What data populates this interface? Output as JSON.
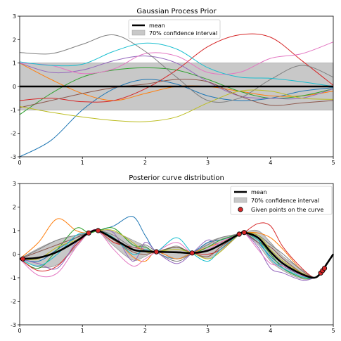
{
  "chart_data": [
    {
      "type": "line",
      "title": "Gaussian Process Prior",
      "xlabel": "",
      "ylabel": "",
      "xlim": [
        0,
        5
      ],
      "ylim": [
        -3,
        3
      ],
      "xticks": [
        "0",
        "1",
        "2",
        "3",
        "4",
        "5"
      ],
      "yticks": [
        "-3",
        "-2",
        "-1",
        "0",
        "1",
        "2",
        "3"
      ],
      "legend": {
        "placement": "top-center",
        "entries": [
          "mean",
          "70% confidence interval"
        ]
      },
      "mean": {
        "color": "#000000",
        "x": [
          0,
          5
        ],
        "y": [
          0,
          0
        ]
      },
      "band": {
        "color": "#c8c8c8",
        "x": [
          0,
          5
        ],
        "lower": [
          -1.0,
          -1.0
        ],
        "upper": [
          1.0,
          1.0
        ]
      },
      "series": [
        {
          "color": "#1f77b4",
          "x": [
            0,
            0.5,
            1,
            1.5,
            2,
            2.5,
            3,
            3.5,
            4,
            4.5,
            5
          ],
          "y": [
            -3.0,
            -2.3,
            -1.0,
            -0.1,
            0.3,
            0.1,
            -0.4,
            -0.6,
            -0.5,
            -0.2,
            -0.05
          ]
        },
        {
          "color": "#ff7f0e",
          "x": [
            0,
            0.5,
            1,
            1.5,
            2,
            2.5,
            3,
            3.5,
            4,
            4.5,
            5
          ],
          "y": [
            1.0,
            0.3,
            -0.3,
            -0.6,
            -0.3,
            0.0,
            0.0,
            -0.2,
            -0.4,
            -0.4,
            -0.2
          ]
        },
        {
          "color": "#2ca02c",
          "x": [
            0,
            0.5,
            1,
            1.5,
            2,
            2.5,
            3,
            3.5,
            4,
            4.5,
            5
          ],
          "y": [
            -1.2,
            -0.3,
            0.4,
            0.7,
            0.8,
            0.7,
            0.3,
            -0.2,
            -0.5,
            -0.4,
            -0.1
          ]
        },
        {
          "color": "#d62728",
          "x": [
            0,
            0.5,
            1,
            1.5,
            2,
            2.5,
            3,
            3.5,
            4,
            4.5,
            5
          ],
          "y": [
            -0.6,
            -0.5,
            -0.65,
            -0.6,
            -0.1,
            0.7,
            1.7,
            2.2,
            2.1,
            1.1,
            0.05
          ]
        },
        {
          "color": "#9467bd",
          "x": [
            0,
            0.5,
            1,
            1.5,
            2,
            2.5,
            3,
            3.5,
            4,
            4.5,
            5
          ],
          "y": [
            1.0,
            0.6,
            0.7,
            1.1,
            1.3,
            1.0,
            0.2,
            -0.4,
            -0.5,
            -0.5,
            -0.1
          ]
        },
        {
          "color": "#8c564b",
          "x": [
            0,
            0.5,
            1,
            1.5,
            2,
            2.5,
            3,
            3.5,
            4,
            4.5,
            5
          ],
          "y": [
            -0.9,
            -0.6,
            -0.3,
            -0.05,
            0.1,
            0.3,
            0.2,
            -0.4,
            -0.8,
            -0.7,
            -0.6
          ]
        },
        {
          "color": "#e377c2",
          "x": [
            0,
            0.5,
            1,
            1.5,
            2,
            2.5,
            3,
            3.5,
            4,
            4.5,
            5
          ],
          "y": [
            1.0,
            0.9,
            0.55,
            0.75,
            1.4,
            1.3,
            0.6,
            0.6,
            1.2,
            1.4,
            1.9
          ]
        },
        {
          "color": "#7f7f7f",
          "x": [
            0,
            0.5,
            1,
            1.5,
            2,
            2.5,
            3,
            3.5,
            4,
            4.5,
            5
          ],
          "y": [
            1.45,
            1.4,
            1.8,
            2.2,
            1.5,
            0.4,
            -0.6,
            -0.5,
            0.3,
            0.9,
            0.4
          ]
        },
        {
          "color": "#bcbd22",
          "x": [
            0,
            0.5,
            1,
            1.5,
            2,
            2.5,
            3,
            3.5,
            4,
            4.5,
            5
          ],
          "y": [
            -0.85,
            -1.1,
            -1.3,
            -1.45,
            -1.5,
            -1.3,
            -0.7,
            -0.2,
            -0.2,
            -0.5,
            -0.55
          ]
        },
        {
          "color": "#17becf",
          "x": [
            0,
            0.5,
            1,
            1.5,
            2,
            2.5,
            3,
            3.5,
            4,
            4.5,
            5
          ],
          "y": [
            1.05,
            0.9,
            0.95,
            1.5,
            1.85,
            1.6,
            0.8,
            0.4,
            0.35,
            0.2,
            0.0
          ]
        }
      ]
    },
    {
      "type": "line",
      "title": "Posterior curve distribution",
      "xlabel": "",
      "ylabel": "",
      "xlim": [
        0,
        5
      ],
      "ylim": [
        -3,
        3
      ],
      "xticks": [
        "0",
        "1",
        "2",
        "3",
        "4",
        "5"
      ],
      "yticks": [
        "-3",
        "-2",
        "-1",
        "0",
        "1",
        "2",
        "3"
      ],
      "legend": {
        "placement": "top-right",
        "entries": [
          "mean",
          "70% confidence interval",
          "Given points on the curve"
        ]
      },
      "mean": {
        "color": "#000000",
        "x": [
          0,
          0.3,
          0.6,
          0.9,
          1.1,
          1.25,
          1.5,
          1.8,
          2.0,
          2.18,
          2.5,
          2.75,
          3.0,
          3.2,
          3.5,
          3.58,
          3.8,
          4.0,
          4.2,
          4.5,
          4.7,
          4.8,
          4.85,
          5.0
        ],
        "y": [
          -0.2,
          -0.15,
          0.1,
          0.55,
          0.9,
          1.0,
          0.65,
          0.2,
          0.12,
          0.1,
          0.08,
          0.05,
          0.15,
          0.4,
          0.85,
          0.92,
          0.7,
          0.1,
          -0.4,
          -0.85,
          -1.0,
          -0.8,
          -0.6,
          0.0
        ]
      },
      "band": {
        "color": "#c8c8c8",
        "x": [
          0,
          0.3,
          0.6,
          0.9,
          1.1,
          1.25,
          1.5,
          1.8,
          2.0,
          2.18,
          2.5,
          2.75,
          3.0,
          3.2,
          3.5,
          3.58,
          3.8,
          4.0,
          4.2,
          4.5,
          4.7,
          4.8,
          4.85,
          5.0
        ],
        "lower": [
          -0.2,
          -0.55,
          -0.45,
          0.3,
          0.9,
          0.95,
          0.35,
          -0.25,
          -0.1,
          0.1,
          -0.2,
          0.05,
          -0.2,
          0.1,
          0.82,
          0.9,
          0.4,
          -0.3,
          -0.7,
          -1.05,
          -1.0,
          -0.85,
          -0.6,
          0.0
        ],
        "upper": [
          -0.2,
          0.25,
          0.6,
          0.8,
          0.9,
          1.05,
          0.95,
          0.6,
          0.35,
          0.1,
          0.35,
          0.05,
          0.5,
          0.7,
          0.88,
          0.94,
          1.0,
          0.5,
          -0.1,
          -0.65,
          -1.0,
          -0.75,
          -0.6,
          0.0
        ]
      },
      "points": {
        "color": "#d62728",
        "x": [
          0.05,
          1.1,
          1.25,
          2.18,
          2.75,
          3.5,
          3.58,
          4.8,
          4.83,
          4.86
        ],
        "y": [
          -0.2,
          0.9,
          1.0,
          0.1,
          0.05,
          0.85,
          0.92,
          -0.8,
          -0.7,
          -0.6
        ]
      },
      "series": [
        {
          "color": "#1f77b4",
          "x": [
            0,
            0.3,
            0.6,
            0.9,
            1.1,
            1.25,
            1.5,
            1.8,
            2.0,
            2.18,
            2.5,
            2.75,
            3.0,
            3.2,
            3.5,
            3.58,
            3.8,
            4.0,
            4.2,
            4.5,
            4.7,
            4.8,
            4.85,
            5.0
          ],
          "y": [
            -0.2,
            -0.3,
            0.2,
            0.7,
            0.9,
            1.0,
            1.2,
            1.6,
            0.8,
            0.1,
            -0.2,
            0.05,
            0.5,
            0.6,
            0.85,
            0.9,
            0.5,
            -0.1,
            -0.5,
            -0.9,
            -1.0,
            -0.85,
            -0.6,
            0.0
          ]
        },
        {
          "color": "#ff7f0e",
          "x": [
            0,
            0.3,
            0.6,
            0.9,
            1.1,
            1.25,
            1.5,
            1.8,
            2.0,
            2.18,
            2.5,
            2.75,
            3.0,
            3.2,
            3.5,
            3.58,
            3.8,
            4.0,
            4.2,
            4.5,
            4.7,
            4.8,
            4.85,
            5.0
          ],
          "y": [
            -0.2,
            0.5,
            1.5,
            1.0,
            0.9,
            1.0,
            0.7,
            -0.1,
            -0.3,
            0.1,
            -0.2,
            0.05,
            0.3,
            0.5,
            0.85,
            0.92,
            0.9,
            0.7,
            0.2,
            -0.7,
            -1.0,
            -0.8,
            -0.6,
            0.0
          ]
        },
        {
          "color": "#2ca02c",
          "x": [
            0,
            0.3,
            0.6,
            0.9,
            1.1,
            1.25,
            1.5,
            1.8,
            2.0,
            2.18,
            2.5,
            2.75,
            3.0,
            3.2,
            3.5,
            3.58,
            3.8,
            4.0,
            4.2,
            4.5,
            4.7,
            4.8,
            4.85,
            5.0
          ],
          "y": [
            -0.2,
            -0.6,
            0.2,
            1.1,
            0.9,
            1.0,
            1.1,
            0.4,
            0.3,
            0.1,
            0.3,
            0.05,
            0.3,
            0.6,
            0.85,
            0.92,
            0.6,
            0.0,
            -0.6,
            -1.0,
            -1.0,
            -0.8,
            -0.6,
            0.0
          ]
        },
        {
          "color": "#d62728",
          "x": [
            0,
            0.3,
            0.6,
            0.9,
            1.1,
            1.25,
            1.5,
            1.8,
            2.0,
            2.18,
            2.5,
            2.75,
            3.0,
            3.2,
            3.5,
            3.58,
            3.8,
            4.0,
            4.2,
            4.5,
            4.7,
            4.8,
            4.85,
            5.0
          ],
          "y": [
            -0.2,
            -0.7,
            -0.5,
            0.4,
            0.9,
            1.0,
            0.5,
            0.3,
            0.2,
            0.1,
            0.1,
            0.05,
            0.0,
            0.2,
            0.85,
            0.92,
            1.3,
            1.2,
            0.3,
            -0.6,
            -1.0,
            -0.8,
            -0.6,
            0.0
          ]
        },
        {
          "color": "#9467bd",
          "x": [
            0,
            0.3,
            0.6,
            0.9,
            1.1,
            1.25,
            1.5,
            1.8,
            2.0,
            2.18,
            2.5,
            2.75,
            3.0,
            3.2,
            3.5,
            3.58,
            3.8,
            4.0,
            4.2,
            4.5,
            4.7,
            4.8,
            4.85,
            5.0
          ],
          "y": [
            -0.2,
            -0.4,
            -0.6,
            0.5,
            0.9,
            1.0,
            0.9,
            -0.3,
            0.5,
            0.1,
            -0.4,
            0.05,
            0.6,
            0.4,
            0.85,
            0.92,
            0.3,
            -0.6,
            -0.8,
            -1.1,
            -1.0,
            -0.8,
            -0.6,
            0.0
          ]
        },
        {
          "color": "#8c564b",
          "x": [
            0,
            0.3,
            0.6,
            0.9,
            1.1,
            1.25,
            1.5,
            1.8,
            2.0,
            2.18,
            2.5,
            2.75,
            3.0,
            3.2,
            3.5,
            3.58,
            3.8,
            4.0,
            4.2,
            4.5,
            4.7,
            4.8,
            4.85,
            5.0
          ],
          "y": [
            -0.2,
            0.1,
            0.4,
            0.7,
            0.9,
            1.0,
            0.6,
            0.1,
            0.0,
            0.1,
            0.3,
            0.05,
            -0.1,
            0.3,
            0.85,
            0.92,
            0.5,
            0.3,
            -0.2,
            -0.8,
            -1.0,
            -0.8,
            -0.6,
            0.0
          ]
        },
        {
          "color": "#e377c2",
          "x": [
            0,
            0.3,
            0.6,
            0.9,
            1.1,
            1.25,
            1.5,
            1.8,
            2.0,
            2.18,
            2.5,
            2.75,
            3.0,
            3.2,
            3.5,
            3.58,
            3.8,
            4.0,
            4.2,
            4.5,
            4.7,
            4.8,
            4.85,
            5.0
          ],
          "y": [
            -0.2,
            -0.9,
            -0.8,
            0.3,
            0.9,
            1.0,
            0.2,
            -0.5,
            -0.2,
            0.1,
            0.5,
            0.05,
            0.2,
            0.5,
            0.85,
            0.92,
            0.2,
            -0.4,
            -0.5,
            -0.9,
            -1.0,
            -0.8,
            -0.6,
            0.0
          ]
        },
        {
          "color": "#7f7f7f",
          "x": [
            0,
            0.3,
            0.6,
            0.9,
            1.1,
            1.25,
            1.5,
            1.8,
            2.0,
            2.18,
            2.5,
            2.75,
            3.0,
            3.2,
            3.5,
            3.58,
            3.8,
            4.0,
            4.2,
            4.5,
            4.7,
            4.8,
            4.85,
            5.0
          ],
          "y": [
            -0.2,
            0.2,
            0.6,
            0.8,
            0.9,
            1.0,
            0.8,
            0.3,
            0.4,
            0.1,
            -0.3,
            0.05,
            0.4,
            0.7,
            0.85,
            0.92,
            0.8,
            0.4,
            0.0,
            -0.7,
            -1.0,
            -0.8,
            -0.6,
            0.0
          ]
        },
        {
          "color": "#bcbd22",
          "x": [
            0,
            0.3,
            0.6,
            0.9,
            1.1,
            1.25,
            1.5,
            1.8,
            2.0,
            2.18,
            2.5,
            2.75,
            3.0,
            3.2,
            3.5,
            3.58,
            3.8,
            4.0,
            4.2,
            4.5,
            4.7,
            4.8,
            4.85,
            5.0
          ],
          "y": [
            -0.2,
            -0.2,
            0.3,
            0.6,
            0.9,
            1.0,
            1.0,
            0.5,
            0.1,
            0.1,
            0.2,
            0.05,
            -0.2,
            0.1,
            0.85,
            0.92,
            0.8,
            0.2,
            -0.3,
            -0.8,
            -1.0,
            -0.8,
            -0.6,
            0.0
          ]
        },
        {
          "color": "#17becf",
          "x": [
            0,
            0.3,
            0.6,
            0.9,
            1.1,
            1.25,
            1.5,
            1.8,
            2.0,
            2.18,
            2.5,
            2.75,
            3.0,
            3.2,
            3.5,
            3.58,
            3.8,
            4.0,
            4.2,
            4.5,
            4.7,
            4.8,
            4.85,
            5.0
          ],
          "y": [
            -0.2,
            -0.5,
            0.0,
            0.8,
            0.9,
            1.0,
            0.7,
            0.0,
            0.2,
            0.1,
            0.7,
            0.05,
            -0.3,
            0.2,
            0.85,
            0.92,
            0.6,
            -0.2,
            -0.6,
            -0.95,
            -1.0,
            -0.8,
            -0.6,
            0.0
          ]
        }
      ]
    }
  ]
}
